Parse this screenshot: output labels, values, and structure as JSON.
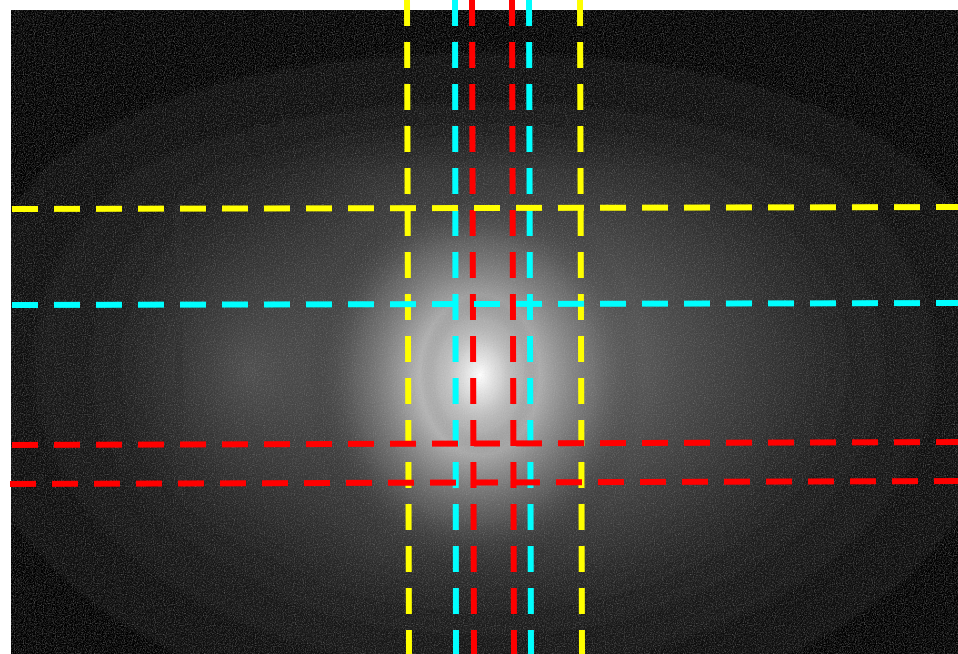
{
  "image": {
    "description_type": "grayscale diffuse light intensity image with overlaid dashed guide lines",
    "background_color": "#000000",
    "frame_color": "#ffffff"
  },
  "guide_lines": {
    "vertical": [
      {
        "color": "#ffff00",
        "name": "vertical-yellow-left"
      },
      {
        "color": "#00ffff",
        "name": "vertical-cyan-left"
      },
      {
        "color": "#ff0000",
        "name": "vertical-red-left"
      },
      {
        "color": "#ff0000",
        "name": "vertical-red-right"
      },
      {
        "color": "#00ffff",
        "name": "vertical-cyan-right"
      },
      {
        "color": "#ffff00",
        "name": "vertical-yellow-right"
      }
    ],
    "horizontal": [
      {
        "color": "#ffff00",
        "name": "horizontal-yellow"
      },
      {
        "color": "#00ffff",
        "name": "horizontal-cyan"
      },
      {
        "color": "#ff0000",
        "name": "horizontal-red-upper"
      },
      {
        "color": "#ff0000",
        "name": "horizontal-red-lower"
      }
    ]
  }
}
